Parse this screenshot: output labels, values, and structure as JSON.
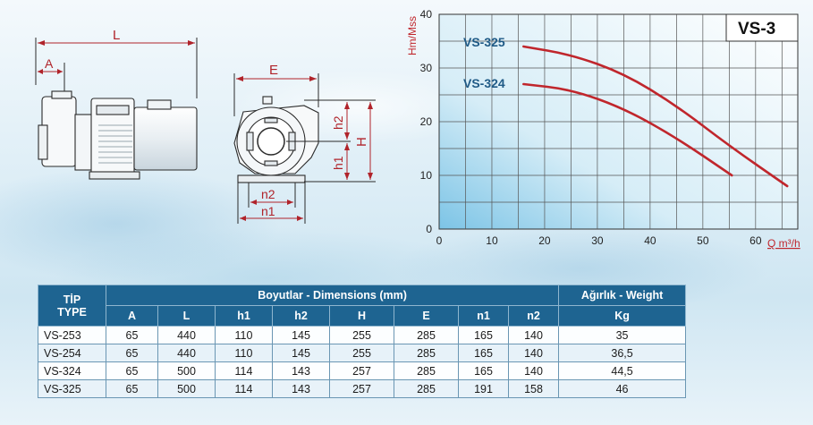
{
  "drawing": {
    "dim_L": "L",
    "dim_A": "A",
    "dim_E": "E",
    "dim_h2": "h2",
    "dim_h1": "h1",
    "dim_H": "H",
    "dim_n2": "n2",
    "dim_n1": "n1"
  },
  "chart_data": {
    "type": "line",
    "title": "VS-3",
    "ylabel": "Hm/Mss",
    "xlabel": "Q m³/h",
    "xlim": [
      0,
      68
    ],
    "ylim": [
      0,
      40
    ],
    "x_ticks": [
      0,
      10,
      20,
      30,
      40,
      50,
      60
    ],
    "y_ticks": [
      0,
      10,
      20,
      30,
      40
    ],
    "grid": true,
    "series": [
      {
        "name": "VS-325",
        "x": [
          16,
          25,
          35,
          45,
          55,
          66
        ],
        "y": [
          34,
          32.5,
          29,
          23,
          15.5,
          8
        ]
      },
      {
        "name": "VS-324",
        "x": [
          16,
          25,
          35,
          45,
          55.5
        ],
        "y": [
          27,
          26,
          22.5,
          17,
          10
        ]
      }
    ],
    "colors": {
      "curve": "#c0262c",
      "axis_label": "#c0262c",
      "series_label": "#1f5a86",
      "grid": "#555555"
    }
  },
  "table": {
    "header_tip": "TİP",
    "header_type": "TYPE",
    "header_dimensions": "Boyutlar -  Dimensions (mm)",
    "header_weight": "Ağırlık - Weight",
    "columns": [
      "A",
      "L",
      "h1",
      "h2",
      "H",
      "E",
      "n1",
      "n2"
    ],
    "weight_unit": "Kg",
    "rows": [
      {
        "model": "VS-253",
        "values": [
          "65",
          "440",
          "110",
          "145",
          "255",
          "285",
          "165",
          "140"
        ],
        "weight": "35"
      },
      {
        "model": "VS-254",
        "values": [
          "65",
          "440",
          "110",
          "145",
          "255",
          "285",
          "165",
          "140"
        ],
        "weight": "36,5"
      },
      {
        "model": "VS-324",
        "values": [
          "65",
          "500",
          "114",
          "143",
          "257",
          "285",
          "165",
          "140"
        ],
        "weight": "44,5"
      },
      {
        "model": "VS-325",
        "values": [
          "65",
          "500",
          "114",
          "143",
          "257",
          "285",
          "191",
          "158"
        ],
        "weight": "46"
      }
    ]
  }
}
